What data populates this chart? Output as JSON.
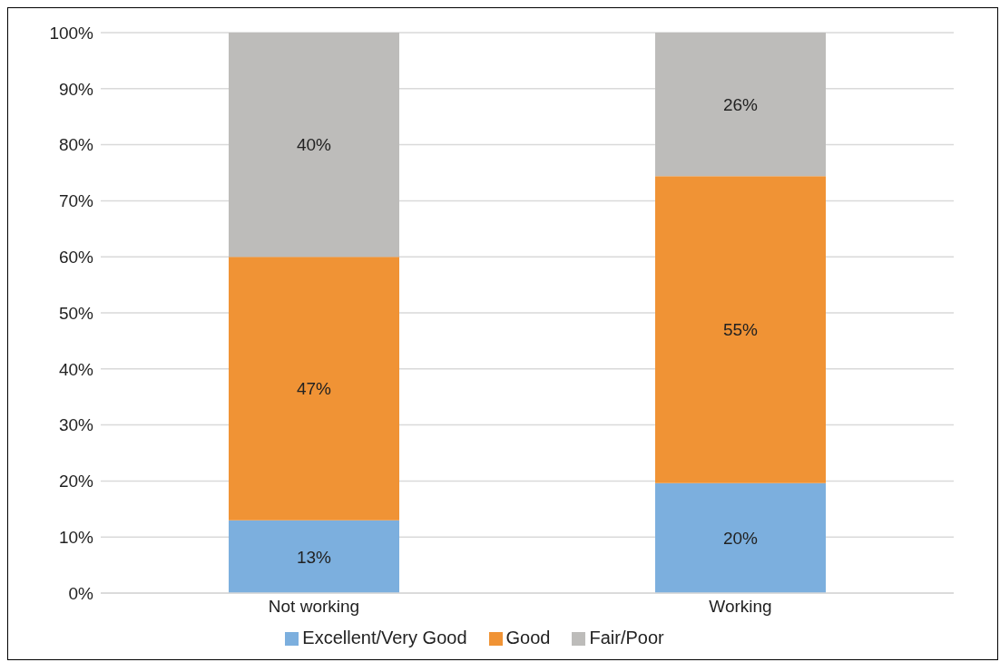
{
  "chart_data": {
    "type": "bar",
    "stacked": true,
    "categories": [
      "Not working",
      "Working"
    ],
    "series": [
      {
        "name": "Excellent/Very Good",
        "color": "#7cafde",
        "values": [
          13,
          19.6
        ],
        "value_labels": [
          "13%",
          "20%"
        ]
      },
      {
        "name": "Good",
        "color": "#f09335",
        "values": [
          47,
          54.8
        ],
        "value_labels": [
          "47%",
          "55%"
        ]
      },
      {
        "name": "Fair/Poor",
        "color": "#bdbcba",
        "values": [
          40,
          25.6
        ],
        "value_labels": [
          "40%",
          "26%"
        ]
      }
    ],
    "ylim": [
      0,
      100
    ],
    "yticks": [
      {
        "value": 0,
        "label": "0%"
      },
      {
        "value": 10,
        "label": "10%"
      },
      {
        "value": 20,
        "label": "20%"
      },
      {
        "value": 30,
        "label": "30%"
      },
      {
        "value": 40,
        "label": "40%"
      },
      {
        "value": 50,
        "label": "50%"
      },
      {
        "value": 60,
        "label": "60%"
      },
      {
        "value": 70,
        "label": "70%"
      },
      {
        "value": 80,
        "label": "80%"
      },
      {
        "value": 90,
        "label": "90%"
      },
      {
        "value": 100,
        "label": "100%"
      }
    ],
    "grid": "y",
    "legend": "bottom"
  }
}
